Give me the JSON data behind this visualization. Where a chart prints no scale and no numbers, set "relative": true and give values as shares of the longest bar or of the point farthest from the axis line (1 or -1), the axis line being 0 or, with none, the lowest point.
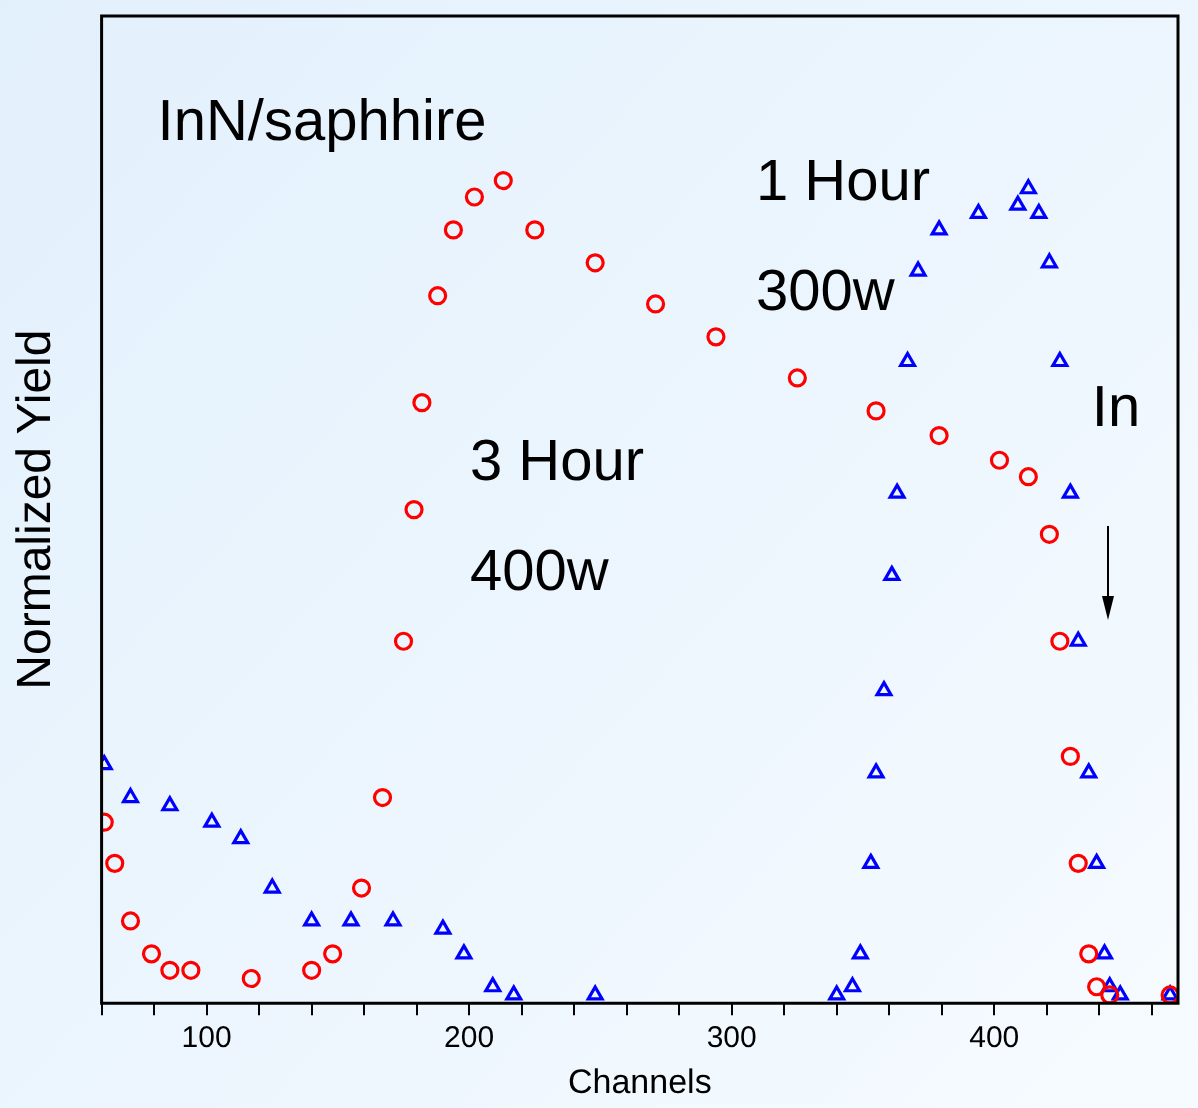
{
  "chart_data": {
    "type": "scatter",
    "relative": true,
    "xlabel": "Channels",
    "ylabel": "Normalized Yield",
    "xlim": [
      60,
      470
    ],
    "xticks": [
      {
        "value": 60,
        "label": null
      },
      {
        "value": 80,
        "label": null
      },
      100,
      {
        "value": 120,
        "label": null
      },
      {
        "value": 140,
        "label": null
      },
      {
        "value": 160,
        "label": null
      },
      {
        "value": 180,
        "label": null
      },
      200,
      {
        "value": 220,
        "label": null
      },
      {
        "value": 240,
        "label": null
      },
      {
        "value": 260,
        "label": null
      },
      {
        "value": 280,
        "label": null
      },
      300,
      {
        "value": 320,
        "label": null
      },
      {
        "value": 340,
        "label": null
      },
      {
        "value": 360,
        "label": null
      },
      {
        "value": 380,
        "label": null
      },
      400,
      {
        "value": 420,
        "label": null
      },
      {
        "value": 440,
        "label": null
      },
      {
        "value": 460,
        "label": null
      }
    ],
    "grid": false,
    "legend": false,
    "annotations": [
      "InN/saphhire",
      "In"
    ],
    "series": [
      {
        "name": "3 Hour 400w",
        "color": "#ff0000",
        "marker": "circle",
        "x": [
          61,
          65,
          71,
          79,
          86,
          94,
          117,
          140,
          148,
          159,
          167,
          175,
          179,
          182,
          188,
          194,
          202,
          213,
          225,
          248,
          271,
          294,
          325,
          355,
          379,
          402,
          413,
          421,
          425,
          429,
          432,
          436,
          439,
          444,
          467
        ],
        "values": [
          0.22,
          0.17,
          0.1,
          0.06,
          0.04,
          0.04,
          0.03,
          0.04,
          0.06,
          0.14,
          0.25,
          0.44,
          0.6,
          0.73,
          0.86,
          0.94,
          0.98,
          1,
          0.94,
          0.9,
          0.85,
          0.81,
          0.76,
          0.72,
          0.69,
          0.66,
          0.64,
          0.57,
          0.44,
          0.3,
          0.17,
          0.06,
          0.02,
          0.01,
          0.01
        ]
      },
      {
        "name": "1 Hour 300w",
        "color": "#0000ff",
        "marker": "triangle",
        "x": [
          61,
          71,
          86,
          102,
          113,
          125,
          140,
          155,
          171,
          190,
          198,
          209,
          217,
          248,
          340,
          346,
          349,
          353,
          355,
          358,
          361,
          363,
          367,
          371,
          379,
          394,
          409,
          413,
          417,
          421,
          425,
          429,
          432,
          436,
          439,
          442,
          444,
          448,
          467
        ],
        "values": [
          0.29,
          0.25,
          0.24,
          0.22,
          0.2,
          0.14,
          0.1,
          0.1,
          0.1,
          0.09,
          0.06,
          0.02,
          0.01,
          0.01,
          0.01,
          0.02,
          0.06,
          0.17,
          0.28,
          0.38,
          0.52,
          0.62,
          0.78,
          0.89,
          0.94,
          0.96,
          0.97,
          0.99,
          0.96,
          0.9,
          0.78,
          0.62,
          0.44,
          0.28,
          0.17,
          0.06,
          0.02,
          0.01,
          0.01
        ]
      }
    ]
  }
}
